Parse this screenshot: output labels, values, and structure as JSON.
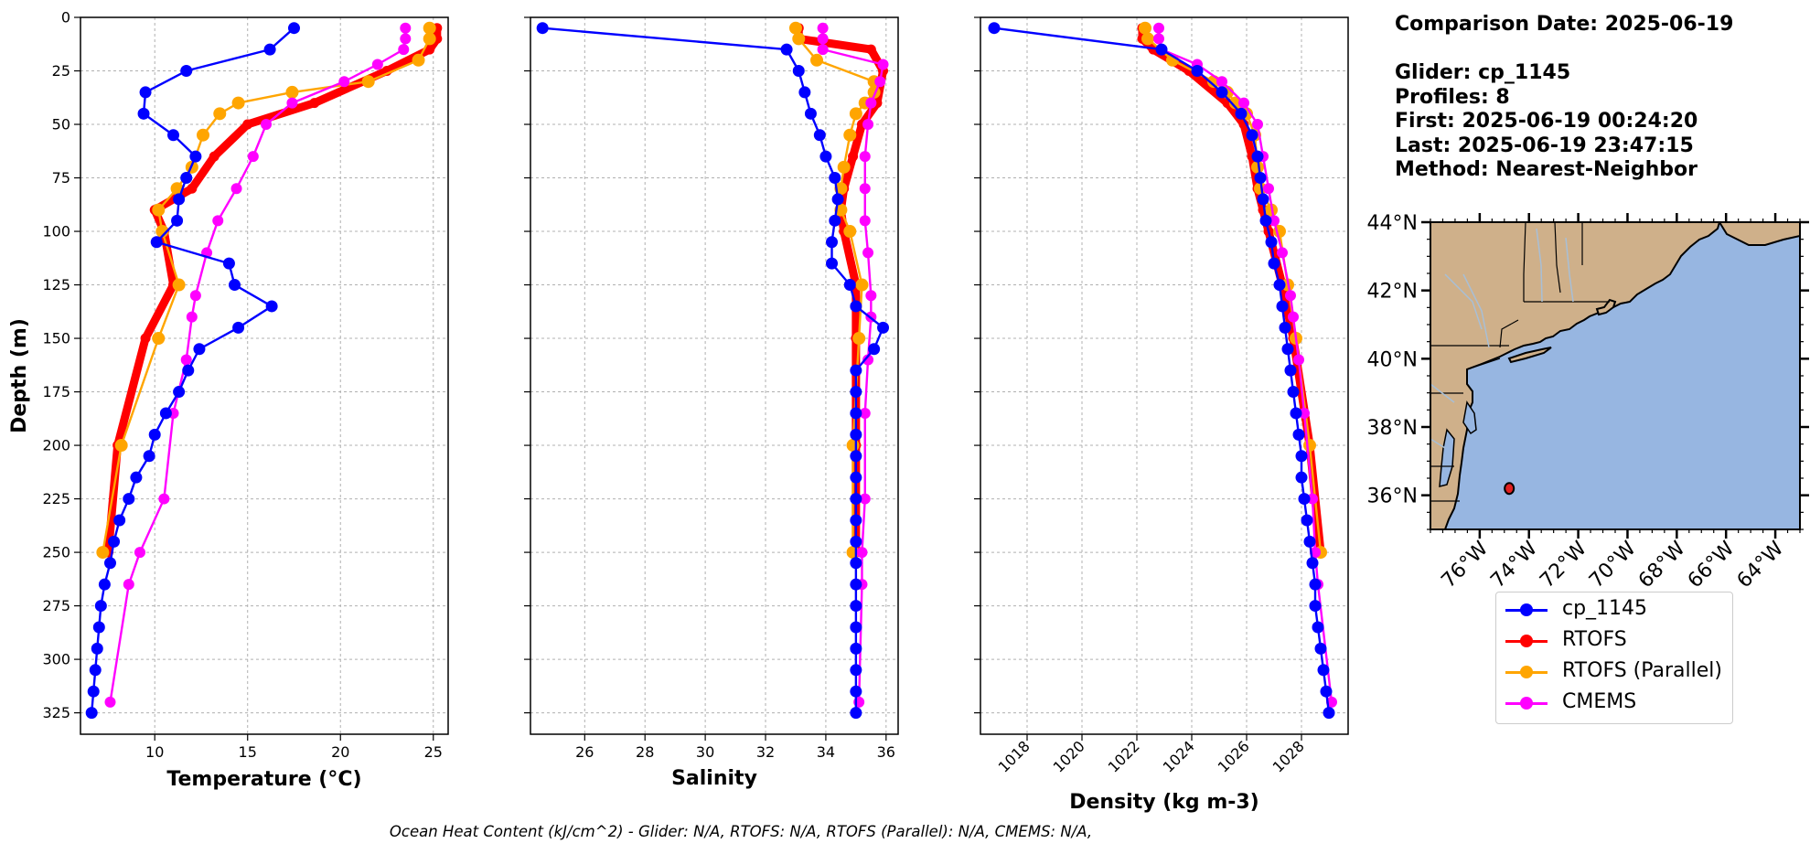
{
  "info": {
    "comparison_date": "Comparison Date: 2025-06-19",
    "glider": "Glider: cp_1145",
    "profiles": "Profiles: 8",
    "first": "First: 2025-06-19 00:24:20",
    "last": "Last: 2025-06-19 23:47:15",
    "method": "Method: Nearest-Neighbor"
  },
  "footer": "Ocean Heat Content (kJ/cm^2) - Glider: N/A,  RTOFS: N/A,  RTOFS (Parallel): N/A,  CMEMS: N/A,",
  "legend": [
    {
      "label": "cp_1145",
      "color": "#0000ff"
    },
    {
      "label": "RTOFS",
      "color": "#ff0000"
    },
    {
      "label": "RTOFS (Parallel)",
      "color": "#ffa500"
    },
    {
      "label": "CMEMS",
      "color": "#ff00ff"
    }
  ],
  "chart_data": [
    {
      "type": "line",
      "xlabel": "Temperature (°C)",
      "ylabel": "Depth (m)",
      "xlim": [
        6,
        25.8
      ],
      "ylim": [
        335,
        0
      ],
      "xticks": [
        10,
        15,
        20,
        25
      ],
      "yticks": [
        0,
        25,
        50,
        75,
        100,
        125,
        150,
        175,
        200,
        225,
        250,
        275,
        300,
        325
      ],
      "grid": true,
      "series": [
        {
          "name": "cp_1145",
          "color": "#0000ff",
          "x": [
            17.5,
            16.2,
            11.7,
            9.5,
            9.4,
            11.0,
            12.2,
            11.7,
            11.3,
            11.2,
            10.1,
            14.0,
            14.3,
            16.3,
            14.5,
            12.4,
            11.8,
            11.3,
            10.6,
            10.0,
            9.7,
            9.0,
            8.6,
            8.1,
            7.8,
            7.6,
            7.3,
            7.1,
            7.0,
            6.9,
            6.8,
            6.7,
            6.6
          ],
          "y": [
            5,
            15,
            25,
            35,
            45,
            55,
            65,
            75,
            85,
            95,
            105,
            115,
            125,
            135,
            145,
            155,
            165,
            175,
            185,
            195,
            205,
            215,
            225,
            235,
            245,
            255,
            265,
            275,
            285,
            295,
            305,
            315,
            325
          ]
        },
        {
          "name": "RTOFS",
          "color": "#ff0000",
          "x": [
            25.2,
            25.2,
            24.8,
            22.5,
            18.6,
            15.0,
            13.2,
            12.0,
            10.0,
            10.5,
            11.0,
            9.5,
            8.0,
            7.5
          ],
          "y": [
            5,
            10,
            15,
            25,
            40,
            50,
            65,
            80,
            90,
            100,
            125,
            150,
            200,
            250
          ]
        },
        {
          "name": "RTOFS (Parallel)",
          "color": "#ffa500",
          "x": [
            24.8,
            24.8,
            24.2,
            21.5,
            17.4,
            14.5,
            13.5,
            12.6,
            12.0,
            11.2,
            10.2,
            10.4,
            11.3,
            10.2,
            8.2,
            7.2
          ],
          "y": [
            5,
            10,
            20,
            30,
            35,
            40,
            45,
            55,
            70,
            80,
            90,
            100,
            125,
            150,
            200,
            250
          ]
        },
        {
          "name": "CMEMS",
          "color": "#ff00ff",
          "x": [
            23.5,
            23.5,
            23.4,
            22.0,
            20.2,
            17.4,
            16.0,
            15.3,
            14.4,
            13.4,
            12.8,
            12.2,
            12.0,
            11.7,
            11.0,
            10.5,
            9.2,
            8.6,
            7.6
          ],
          "y": [
            5,
            10,
            15,
            22,
            30,
            40,
            50,
            65,
            80,
            95,
            110,
            130,
            140,
            160,
            185,
            225,
            250,
            265,
            320
          ]
        }
      ]
    },
    {
      "type": "line",
      "xlabel": "Salinity",
      "xlim": [
        24.2,
        36.4
      ],
      "ylim": [
        335,
        0
      ],
      "xticks": [
        26,
        28,
        30,
        32,
        34,
        36
      ],
      "grid": true,
      "series": [
        {
          "name": "cp_1145",
          "color": "#0000ff",
          "x": [
            24.6,
            32.7,
            33.1,
            33.3,
            33.5,
            33.8,
            34.0,
            34.3,
            34.4,
            34.3,
            34.2,
            34.2,
            34.8,
            35.0,
            35.9,
            35.6,
            35.0,
            35.0,
            35.0,
            35.0,
            35.0,
            35.0,
            35.0,
            35.0,
            35.0,
            35.0,
            35.0,
            35.0,
            35.0,
            35.0,
            35.0,
            35.0,
            35.0
          ],
          "y": [
            5,
            15,
            25,
            35,
            45,
            55,
            65,
            75,
            85,
            95,
            105,
            115,
            125,
            135,
            145,
            155,
            165,
            175,
            185,
            195,
            205,
            215,
            225,
            235,
            245,
            255,
            265,
            275,
            285,
            295,
            305,
            315,
            325
          ]
        },
        {
          "name": "RTOFS",
          "color": "#ff0000",
          "x": [
            33.1,
            33.1,
            35.5,
            35.9,
            35.7,
            35.2,
            34.9,
            34.6,
            34.5,
            34.6,
            35.0,
            35.0,
            35.0,
            35.0
          ],
          "y": [
            5,
            10,
            15,
            25,
            40,
            50,
            65,
            80,
            90,
            100,
            125,
            150,
            200,
            250
          ]
        },
        {
          "name": "RTOFS (Parallel)",
          "color": "#ffa500",
          "x": [
            33.0,
            33.1,
            33.7,
            35.6,
            35.6,
            35.3,
            35.0,
            34.8,
            34.6,
            34.5,
            34.5,
            34.8,
            35.2,
            35.1,
            34.9,
            34.9
          ],
          "y": [
            5,
            10,
            20,
            30,
            35,
            40,
            45,
            55,
            70,
            80,
            90,
            100,
            125,
            150,
            200,
            250
          ]
        },
        {
          "name": "CMEMS",
          "color": "#ff00ff",
          "x": [
            33.9,
            33.9,
            33.9,
            35.9,
            35.8,
            35.5,
            35.4,
            35.3,
            35.3,
            35.3,
            35.4,
            35.5,
            35.5,
            35.4,
            35.3,
            35.3,
            35.2,
            35.2,
            35.1
          ],
          "y": [
            5,
            10,
            15,
            22,
            30,
            40,
            50,
            65,
            80,
            95,
            110,
            130,
            140,
            160,
            185,
            225,
            250,
            265,
            320
          ]
        }
      ]
    },
    {
      "type": "line",
      "xlabel": "Density (kg m-3)",
      "xlim": [
        1016.3,
        1029.7
      ],
      "ylim": [
        335,
        0
      ],
      "xticks": [
        1018,
        1020,
        1022,
        1024,
        1026,
        1028
      ],
      "grid": true,
      "series": [
        {
          "name": "cp_1145",
          "color": "#0000ff",
          "x": [
            1016.8,
            1022.9,
            1024.2,
            1025.1,
            1025.8,
            1026.2,
            1026.4,
            1026.5,
            1026.6,
            1026.7,
            1026.9,
            1027.0,
            1027.2,
            1027.3,
            1027.4,
            1027.5,
            1027.6,
            1027.7,
            1027.8,
            1027.9,
            1028.0,
            1028.0,
            1028.1,
            1028.2,
            1028.3,
            1028.4,
            1028.5,
            1028.5,
            1028.6,
            1028.7,
            1028.8,
            1028.9,
            1029.0
          ],
          "y": [
            5,
            15,
            25,
            35,
            45,
            55,
            65,
            75,
            85,
            95,
            105,
            115,
            125,
            135,
            145,
            155,
            165,
            175,
            185,
            195,
            205,
            215,
            225,
            235,
            245,
            255,
            265,
            275,
            285,
            295,
            305,
            315,
            325
          ]
        },
        {
          "name": "RTOFS",
          "color": "#ff0000",
          "x": [
            1022.2,
            1022.2,
            1022.6,
            1023.9,
            1025.3,
            1025.9,
            1026.2,
            1026.4,
            1026.6,
            1026.8,
            1027.3,
            1027.7,
            1028.3,
            1028.7
          ],
          "y": [
            5,
            10,
            15,
            25,
            40,
            50,
            65,
            80,
            90,
            100,
            125,
            150,
            200,
            250
          ]
        },
        {
          "name": "RTOFS (Parallel)",
          "color": "#ffa500",
          "x": [
            1022.3,
            1022.4,
            1023.3,
            1024.8,
            1025.3,
            1025.6,
            1026.0,
            1026.3,
            1026.4,
            1026.5,
            1026.9,
            1027.2,
            1027.5,
            1027.8,
            1028.3,
            1028.7
          ],
          "y": [
            5,
            10,
            20,
            30,
            35,
            40,
            45,
            55,
            70,
            80,
            90,
            100,
            125,
            150,
            200,
            250
          ]
        },
        {
          "name": "CMEMS",
          "color": "#ff00ff",
          "x": [
            1022.8,
            1022.8,
            1022.9,
            1024.2,
            1025.1,
            1025.9,
            1026.4,
            1026.6,
            1026.8,
            1027.0,
            1027.3,
            1027.6,
            1027.7,
            1027.9,
            1028.1,
            1028.4,
            1028.5,
            1028.6,
            1029.1
          ],
          "y": [
            5,
            10,
            15,
            22,
            30,
            40,
            50,
            65,
            80,
            95,
            110,
            130,
            140,
            160,
            185,
            225,
            250,
            265,
            320
          ]
        }
      ]
    }
  ],
  "map": {
    "lat_labels": [
      "44°N",
      "42°N",
      "40°N",
      "38°N",
      "36°N"
    ],
    "lat_values": [
      44,
      42,
      40,
      38,
      36
    ],
    "lon_labels": [
      "76°W",
      "74°W",
      "72°W",
      "70°W",
      "68°W",
      "66°W",
      "64°W"
    ],
    "lon_values": [
      -76,
      -74,
      -72,
      -70,
      -68,
      -66,
      -64
    ],
    "lon_range": [
      -78,
      -63
    ],
    "lat_range": [
      35,
      44
    ],
    "glider_position": {
      "lon": -74.8,
      "lat": 36.2
    },
    "ocean_color": "#97b6e1",
    "land_color": "#cfb08a"
  }
}
